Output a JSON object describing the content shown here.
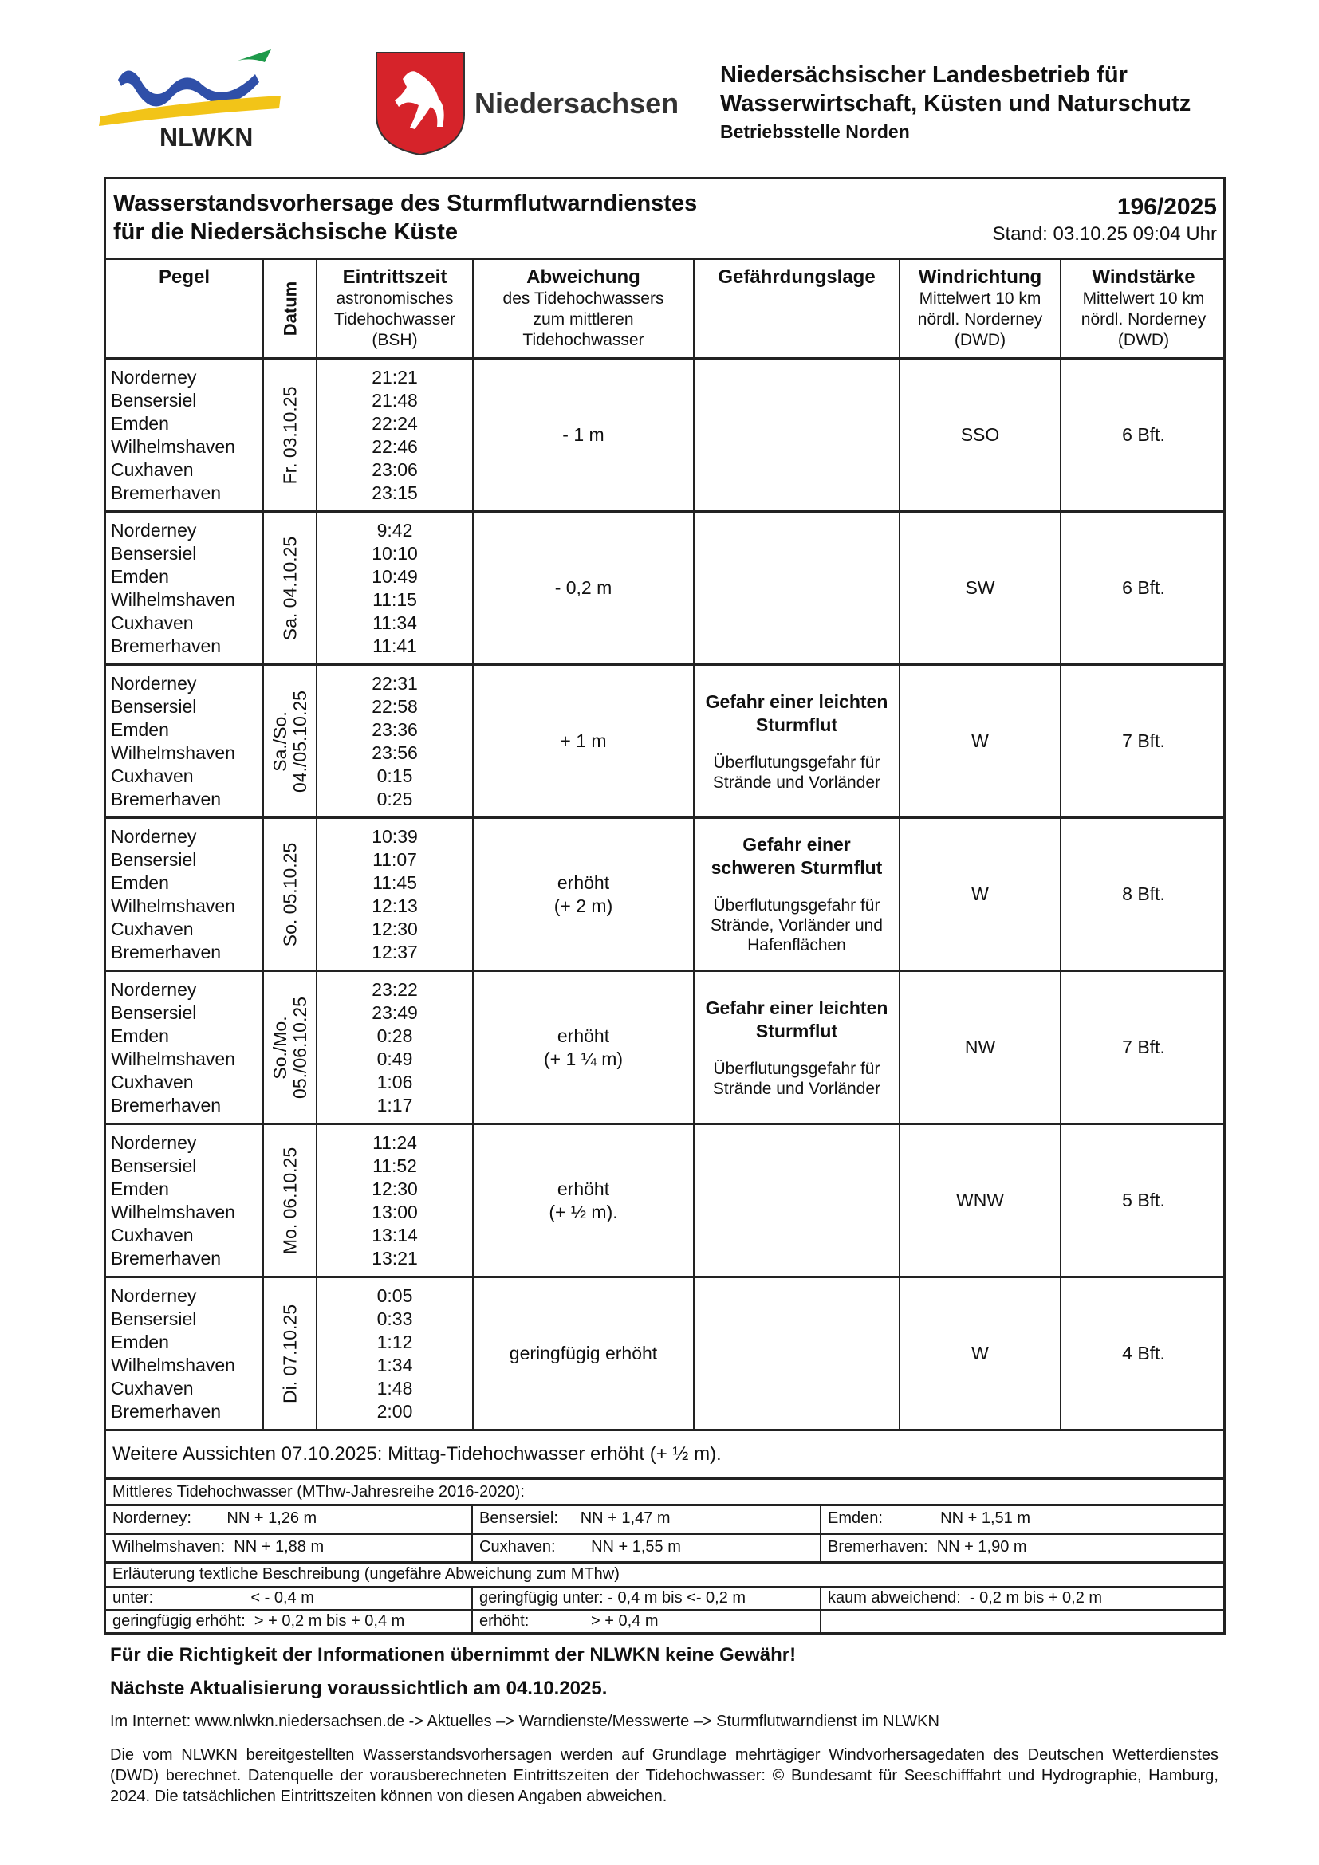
{
  "header": {
    "logo_left": "NLWKN",
    "logo_right": "Niedersachsen",
    "org_line1": "Niedersächsischer Landesbetrieb für",
    "org_line2": "Wasserwirtschaft, Küsten und Naturschutz",
    "org_sub": "Betriebsstelle Norden"
  },
  "doc": {
    "title_line1": "Wasserstandsvorhersage des Sturmflutwarndienstes",
    "title_line2": "für die Niedersächsische Küste",
    "number": "196/2025",
    "stand": "Stand: 03.10.25 09:04 Uhr"
  },
  "columns": {
    "pegel": "Pegel",
    "datum": "Datum",
    "eintritt": "Eintrittszeit",
    "eintritt_sub": "astronomisches Tidehochwasser (BSH)",
    "abweichung": "Abweichung",
    "abweichung_sub": "des Tidehochwassers zum mittleren Tidehochwasser",
    "gefahr": "Gefährdungslage",
    "windrichtung": "Windrichtung",
    "windrichtung_sub": "Mittelwert 10 km nördl. Norderney (DWD)",
    "windstaerke": "Windstärke",
    "windstaerke_sub": "Mittelwert 10 km nördl. Norderney (DWD)"
  },
  "stations": [
    "Norderney",
    "Bensersiel",
    "Emden",
    "Wilhelmshaven",
    "Cuxhaven",
    "Bremerhaven"
  ],
  "rows": [
    {
      "date": "Fr. 03.10.25",
      "times": [
        "21:21",
        "21:48",
        "22:24",
        "22:46",
        "23:06",
        "23:15"
      ],
      "deviation": "- 1 m",
      "danger_title": "",
      "danger_desc": "",
      "wind_dir": "SSO",
      "wind_strength": "6 Bft."
    },
    {
      "date": "Sa. 04.10.25",
      "times": [
        "9:42",
        "10:10",
        "10:49",
        "11:15",
        "11:34",
        "11:41"
      ],
      "deviation": "- 0,2 m",
      "danger_title": "",
      "danger_desc": "",
      "wind_dir": "SW",
      "wind_strength": "6 Bft."
    },
    {
      "date": "Sa./So.\n04./05.10.25",
      "times": [
        "22:31",
        "22:58",
        "23:36",
        "23:56",
        "0:15",
        "0:25"
      ],
      "deviation": "+ 1 m",
      "danger_title": "Gefahr einer leichten Sturmflut",
      "danger_desc": "Überflutungsgefahr für Strände und Vorländer",
      "wind_dir": "W",
      "wind_strength": "7 Bft."
    },
    {
      "date": "So. 05.10.25",
      "times": [
        "10:39",
        "11:07",
        "11:45",
        "12:13",
        "12:30",
        "12:37"
      ],
      "deviation": "erhöht\n(+ 2 m)",
      "danger_title": "Gefahr einer schweren Sturmflut",
      "danger_desc": "Überflutungsgefahr für Strände, Vorländer und Hafenflächen",
      "wind_dir": "W",
      "wind_strength": "8 Bft."
    },
    {
      "date": "So./Mo.\n05./06.10.25",
      "times": [
        "23:22",
        "23:49",
        "0:28",
        "0:49",
        "1:06",
        "1:17"
      ],
      "deviation": "erhöht\n(+ 1 ¼ m)",
      "danger_title": "Gefahr einer leichten Sturmflut",
      "danger_desc": "Überflutungsgefahr für Strände und Vorländer",
      "wind_dir": "NW",
      "wind_strength": "7 Bft."
    },
    {
      "date": "Mo. 06.10.25",
      "times": [
        "11:24",
        "11:52",
        "12:30",
        "13:00",
        "13:14",
        "13:21"
      ],
      "deviation": "erhöht\n(+ ½ m).",
      "danger_title": "",
      "danger_desc": "",
      "wind_dir": "WNW",
      "wind_strength": "5 Bft."
    },
    {
      "date": "Di. 07.10.25",
      "times": [
        "0:05",
        "0:33",
        "1:12",
        "1:34",
        "1:48",
        "2:00"
      ],
      "deviation": "geringfügig erhöht",
      "danger_title": "",
      "danger_desc": "",
      "wind_dir": "W",
      "wind_strength": "4 Bft."
    }
  ],
  "outlook": "Weitere Aussichten 07.10.2025: Mittag-Tidehochwasser erhöht (+ ½ m).",
  "mthw": {
    "title": "Mittleres Tidehochwasser (MThw-Jahresreihe 2016-2020):",
    "values": [
      "Norderney:        NN + 1,26 m",
      "Bensersiel:     NN + 1,47 m",
      "Emden:             NN + 1,51 m",
      "Wilhelmshaven:  NN + 1,88 m",
      "Cuxhaven:        NN + 1,55 m",
      "Bremerhaven:  NN + 1,90 m"
    ]
  },
  "legend": {
    "title": "Erläuterung textliche Beschreibung (ungefähre Abweichung zum MThw)",
    "items": [
      "unter:                      < - 0,4 m",
      "geringfügig unter: - 0,4 m bis <- 0,2 m",
      "kaum abweichend:  - 0,2 m bis + 0,2 m",
      "geringfügig erhöht:  > + 0,2 m bis + 0,4 m",
      "erhöht:              > + 0,4 m",
      ""
    ]
  },
  "footer": {
    "disclaimer": "Für die Richtigkeit der Informationen übernimmt der NLWKN keine Gewähr!",
    "next_update": "Nächste Aktualisierung voraussichtlich am 04.10.2025.",
    "internet": "Im Internet: www.nlwkn.niedersachsen.de -> Aktuelles –> Warndienste/Messwerte –> Sturmflutwarndienst im NLWKN",
    "note": "Die vom NLWKN bereitgestellten Wasserstandsvorhersagen werden auf Grundlage mehrtägiger Windvorhersagedaten des Deutschen Wetterdienstes (DWD) berechnet. Datenquelle der vorausberechneten Eintrittszeiten der Tidehochwasser: © Bundesamt für Seeschifffahrt und Hydrographie, Hamburg, 2024. Die tatsächlichen Eintrittszeiten können von diesen Angaben abweichen."
  },
  "colors": {
    "nlwkn_blue": "#2f4fa8",
    "nlwkn_yellow": "#f2c418",
    "nlwkn_green": "#1e9a4a",
    "shield_red": "#d6232a"
  }
}
